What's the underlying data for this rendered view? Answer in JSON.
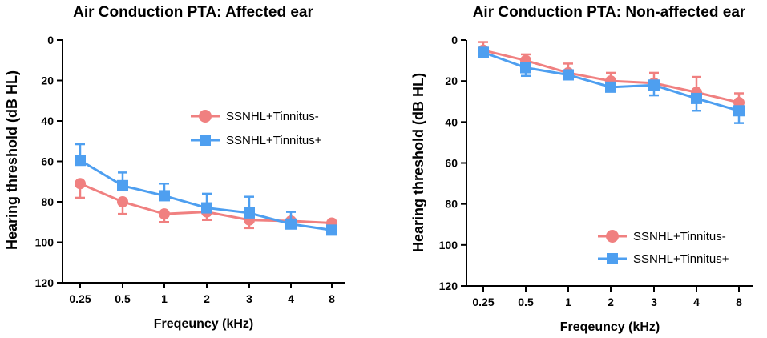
{
  "chart_data": [
    {
      "type": "line",
      "title": "Air Conduction PTA: Affected ear",
      "xlabel": "Freqeuncy (kHz)",
      "ylabel": "Hearing threshold (dB HL)",
      "categories": [
        "0.25",
        "0.5",
        "1",
        "2",
        "3",
        "4",
        "8"
      ],
      "ylim": [
        0,
        120
      ],
      "y_inverted": true,
      "yticks": [
        0,
        20,
        40,
        60,
        80,
        100,
        120
      ],
      "legend_position": "right-middle",
      "series": [
        {
          "name": "SSNHL+Tinnitus-",
          "color": "#F08080",
          "marker": "circle",
          "values": [
            71,
            80,
            86,
            85,
            89,
            89.5,
            90.5
          ],
          "error": [
            7,
            6,
            4,
            4,
            4,
            2,
            2
          ],
          "error_dir": "down"
        },
        {
          "name": "SSNHL+Tinnitus+",
          "color": "#4E9FF0",
          "marker": "square",
          "values": [
            59.5,
            72,
            77,
            83,
            85.5,
            91,
            94
          ],
          "error": [
            8,
            6.5,
            6,
            7,
            8,
            6,
            2
          ],
          "error_dir": "up"
        }
      ]
    },
    {
      "type": "line",
      "title": "Air Conduction PTA: Non-affected ear",
      "xlabel": "Freqeuncy (kHz)",
      "ylabel": "Hearing threshold (dB HL)",
      "categories": [
        "0.25",
        "0.5",
        "1",
        "2",
        "3",
        "4",
        "8"
      ],
      "ylim": [
        0,
        120
      ],
      "y_inverted": true,
      "yticks": [
        0,
        20,
        40,
        60,
        80,
        100,
        120
      ],
      "legend_position": "bottom-right",
      "series": [
        {
          "name": "SSNHL+Tinnitus-",
          "color": "#F08080",
          "marker": "circle",
          "values": [
            5,
            10,
            16,
            20,
            21,
            25.5,
            30.5
          ],
          "error": [
            4,
            3,
            4.5,
            4,
            5,
            7.5,
            4.5
          ],
          "error_dir": "up"
        },
        {
          "name": "SSNHL+Tinnitus+",
          "color": "#4E9FF0",
          "marker": "square",
          "values": [
            6,
            13.5,
            17,
            23,
            22,
            28.5,
            34.5
          ],
          "error": [
            1.5,
            4,
            1.5,
            2,
            5,
            6,
            6
          ],
          "error_dir": "down"
        }
      ]
    }
  ]
}
